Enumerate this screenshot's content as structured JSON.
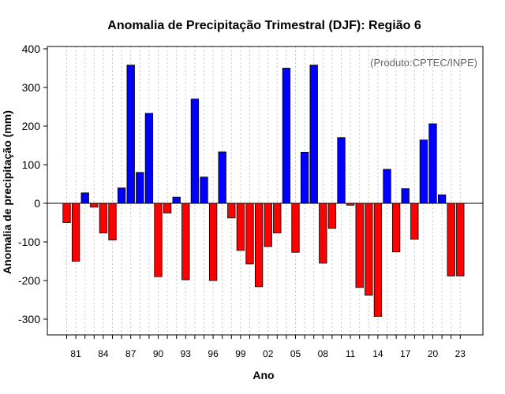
{
  "chart_data": {
    "type": "bar",
    "title": "Anomalia de Precipitação Trimestral (DJF): Região 6",
    "xlabel": "Ano",
    "ylabel": "Anomalia de precipitação (mm)",
    "annotation": "(Produto:CPTEC/INPE)",
    "ylim": [
      -340,
      400
    ],
    "yticks": [
      400,
      300,
      200,
      100,
      0,
      -100,
      -200,
      -300
    ],
    "ytick_labels": [
      "400",
      "300",
      "200",
      "100",
      "0",
      "-100",
      "-200",
      "-300"
    ],
    "xtick_labels": [
      "81",
      "84",
      "87",
      "90",
      "93",
      "96",
      "99",
      "02",
      "05",
      "08",
      "11",
      "14",
      "17",
      "20",
      "23"
    ],
    "categories": [
      "1980",
      "1981",
      "1982",
      "1983",
      "1984",
      "1985",
      "1986",
      "1987",
      "1988",
      "1989",
      "1990",
      "1991",
      "1992",
      "1993",
      "1994",
      "1995",
      "1996",
      "1997",
      "1998",
      "1999",
      "2000",
      "2001",
      "2002",
      "2003",
      "2004",
      "2005",
      "2006",
      "2007",
      "2008",
      "2009",
      "2010",
      "2011",
      "2012",
      "2013",
      "2014",
      "2015",
      "2016",
      "2017",
      "2018",
      "2019",
      "2020",
      "2021",
      "2022",
      "2023"
    ],
    "values": [
      -50,
      -150,
      27,
      -10,
      -77,
      -95,
      40,
      358,
      80,
      233,
      -190,
      -25,
      16,
      -198,
      270,
      68,
      -200,
      133,
      -38,
      -122,
      -157,
      -216,
      -112,
      -77,
      350,
      -127,
      132,
      358,
      -155,
      -65,
      170,
      -5,
      -218,
      -238,
      -293,
      88,
      -126,
      38,
      -93,
      164,
      206,
      22,
      -188,
      -188
    ],
    "colors": {
      "positive": "#0000ff",
      "negative": "#ff0000",
      "grid": "#c8c8c8",
      "axis": "#000000"
    },
    "grid": true,
    "legend": "none"
  }
}
